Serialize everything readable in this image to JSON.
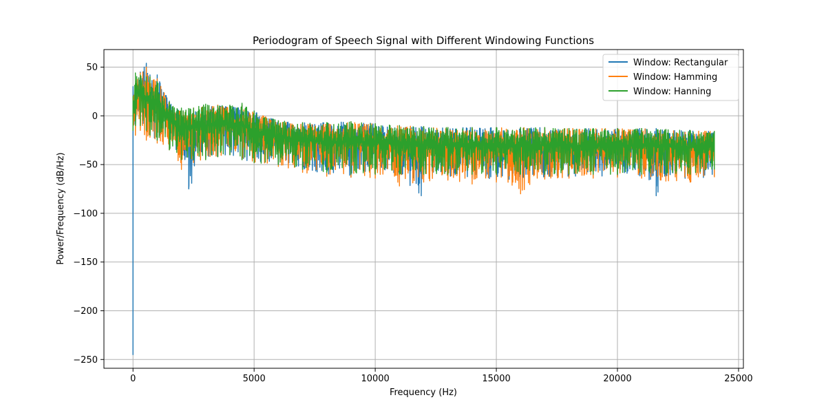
{
  "chart_data": {
    "type": "line",
    "title": "Periodogram of Speech Signal with Different Windowing Functions",
    "xlabel": "Frequency (Hz)",
    "ylabel": "Power/Frequency (dB/Hz)",
    "xlim": [
      -1200,
      25200
    ],
    "ylim": [
      -259,
      68
    ],
    "xticks": [
      0,
      5000,
      10000,
      15000,
      20000,
      25000
    ],
    "xtick_labels": [
      "0",
      "5000",
      "10000",
      "15000",
      "20000",
      "25000"
    ],
    "yticks": [
      50,
      0,
      -50,
      -100,
      -150,
      -200,
      -250
    ],
    "ytick_labels": [
      "50",
      "0",
      "−50",
      "−100",
      "−150",
      "−200",
      "−250"
    ],
    "grid": true,
    "legend_position": "top-right",
    "series": [
      {
        "name": "Window: Rectangular",
        "color": "#1f77b4",
        "x": [
          0,
          1,
          100,
          300,
          550,
          700,
          1000,
          1100,
          1500,
          2000,
          2300,
          3000,
          3500,
          4000,
          4500,
          5000,
          6000,
          7000,
          8000,
          9000,
          10000,
          11000,
          11900,
          12000,
          13000,
          14000,
          15000,
          16000,
          17000,
          18000,
          19000,
          20000,
          21000,
          21600,
          22000,
          23000,
          24000
        ],
        "upper": [
          20,
          30,
          35,
          45,
          54,
          42,
          42,
          35,
          15,
          5,
          2,
          8,
          11,
          10,
          11,
          5,
          -5,
          -7,
          -7,
          -6,
          -8,
          -10,
          -11,
          -11,
          -12,
          -12,
          -12,
          -12,
          -12,
          -13,
          -13,
          -13,
          -13,
          -13,
          -14,
          -15,
          -16
        ],
        "lower": [
          -245,
          -20,
          -15,
          -10,
          -15,
          -20,
          -25,
          -20,
          -30,
          -45,
          -75,
          -45,
          -42,
          -40,
          -45,
          -48,
          -50,
          -55,
          -60,
          -63,
          -60,
          -65,
          -82,
          -62,
          -62,
          -64,
          -66,
          -65,
          -63,
          -62,
          -62,
          -62,
          -62,
          -82,
          -62,
          -65,
          -62
        ]
      },
      {
        "name": "Window: Hamming",
        "color": "#ff7f0e",
        "x": [
          0,
          100,
          300,
          550,
          700,
          1000,
          1500,
          2000,
          2500,
          3000,
          3500,
          4000,
          4500,
          5000,
          6000,
          7000,
          8000,
          9000,
          10000,
          11000,
          12000,
          13000,
          14000,
          15000,
          16000,
          17000,
          18000,
          19000,
          20000,
          21000,
          22000,
          23000,
          24000
        ],
        "upper": [
          20,
          35,
          44,
          50,
          40,
          38,
          14,
          5,
          8,
          10,
          11,
          10,
          11,
          4,
          -5,
          -7,
          -7,
          -6,
          -8,
          -10,
          -11,
          -12,
          -12,
          -12,
          -12,
          -12,
          -13,
          -13,
          -13,
          -13,
          -14,
          -15,
          -16
        ],
        "lower": [
          -10,
          -20,
          -15,
          -25,
          -22,
          -28,
          -35,
          -55,
          -48,
          -45,
          -42,
          -40,
          -45,
          -48,
          -52,
          -58,
          -62,
          -63,
          -64,
          -72,
          -68,
          -66,
          -70,
          -68,
          -80,
          -65,
          -64,
          -64,
          -63,
          -64,
          -67,
          -68,
          -63
        ]
      },
      {
        "name": "Window: Hanning",
        "color": "#2ca02c",
        "x": [
          0,
          100,
          300,
          550,
          700,
          1000,
          1500,
          2000,
          2500,
          3000,
          3500,
          4000,
          4500,
          5000,
          6000,
          7000,
          8000,
          9000,
          10000,
          11000,
          12000,
          13000,
          14000,
          15000,
          16000,
          17000,
          18000,
          19000,
          20000,
          21000,
          22000,
          23000,
          24000
        ],
        "upper": [
          20,
          44,
          42,
          40,
          40,
          35,
          14,
          8,
          8,
          12,
          10,
          11,
          13,
          5,
          -5,
          -7,
          -7,
          -6,
          -8,
          -10,
          -11,
          -12,
          -12,
          -12,
          -12,
          -12,
          -13,
          -13,
          -13,
          -13,
          -14,
          -15,
          -16
        ],
        "lower": [
          -15,
          -10,
          -10,
          -15,
          -20,
          -25,
          -35,
          -45,
          -45,
          -45,
          -42,
          -40,
          -45,
          -48,
          -50,
          -55,
          -58,
          -60,
          -60,
          -60,
          -60,
          -60,
          -60,
          -60,
          -60,
          -60,
          -60,
          -60,
          -60,
          -60,
          -60,
          -60,
          -55
        ]
      }
    ]
  }
}
